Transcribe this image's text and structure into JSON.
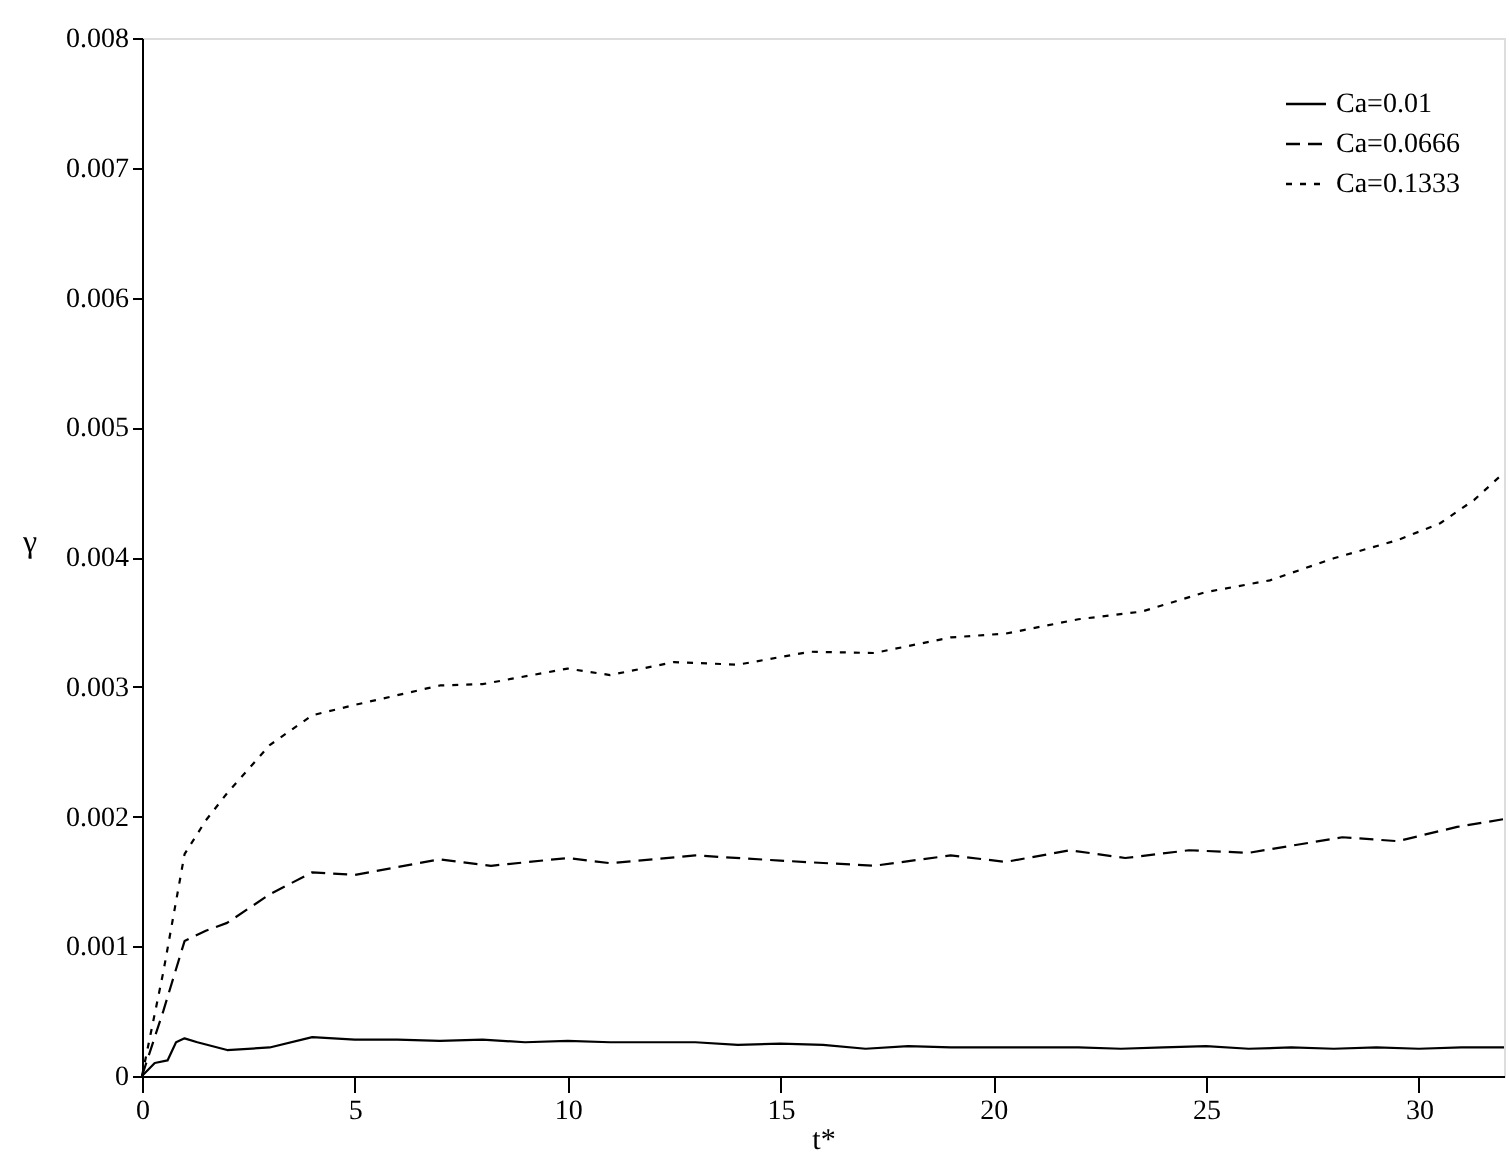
{
  "chart_data": {
    "type": "line",
    "xlabel": "t*",
    "ylabel": "γ",
    "xlim": [
      0,
      32
    ],
    "xticks": [
      0,
      5,
      10,
      15,
      20,
      25,
      30
    ],
    "ylim": [
      0,
      0.008
    ],
    "yticks": [
      0,
      0.001,
      0.002,
      0.003,
      0.004,
      0.005,
      0.006,
      0.007,
      0.008
    ],
    "grid": false,
    "legend": "top right",
    "marker": "none",
    "series": [
      {
        "name": "Ca=0.01",
        "color": "#000000",
        "line_style": "solid",
        "x": [
          0,
          0.3,
          0.6,
          0.8,
          1,
          1.3,
          2,
          3,
          4,
          5,
          6,
          7,
          8,
          9,
          10,
          11,
          12,
          13,
          14,
          15,
          16,
          17,
          18,
          19,
          20,
          21,
          22,
          23,
          24,
          25,
          26,
          27,
          28,
          29,
          30,
          31,
          32
        ],
        "values": [
          0,
          0.0001,
          0.00012,
          0.00026,
          0.00029,
          0.00026,
          0.0002,
          0.00022,
          0.0003,
          0.00028,
          0.00028,
          0.00027,
          0.00028,
          0.00026,
          0.00027,
          0.00026,
          0.00026,
          0.00026,
          0.00024,
          0.00025,
          0.00024,
          0.00021,
          0.00023,
          0.00022,
          0.00022,
          0.00022,
          0.00022,
          0.00021,
          0.00022,
          0.00023,
          0.00021,
          0.00022,
          0.00021,
          0.00022,
          0.00021,
          0.00022,
          0.00022
        ]
      },
      {
        "name": "Ca=0.0666",
        "color": "#000000",
        "line_style": "dashed",
        "x": [
          0,
          0.5,
          1,
          1.5,
          2,
          3,
          4,
          5,
          7,
          8.2,
          10,
          11,
          13,
          15,
          17.2,
          19,
          20.3,
          21.8,
          23.1,
          24.6,
          26,
          28.2,
          29.5,
          30.9,
          32
        ],
        "values": [
          0,
          0.0005,
          0.00104,
          0.00112,
          0.00118,
          0.0014,
          0.00157,
          0.00155,
          0.00167,
          0.00162,
          0.00168,
          0.00164,
          0.0017,
          0.00166,
          0.00162,
          0.0017,
          0.00165,
          0.00174,
          0.00168,
          0.00174,
          0.00172,
          0.00184,
          0.00181,
          0.00192,
          0.00198
        ]
      },
      {
        "name": "Ca=0.1333",
        "color": "#000000",
        "line_style": "dotted",
        "x": [
          0,
          0.5,
          1,
          1.5,
          2,
          3,
          4,
          5,
          7,
          8,
          10,
          11,
          12.5,
          14,
          15.7,
          17.2,
          19,
          20.3,
          22,
          23.5,
          25,
          26.5,
          28,
          29.5,
          30.5,
          31.3,
          32
        ],
        "values": [
          0,
          0.0008,
          0.00171,
          0.00197,
          0.00218,
          0.00255,
          0.00278,
          0.00286,
          0.00301,
          0.00302,
          0.00314,
          0.00309,
          0.00319,
          0.00317,
          0.00327,
          0.00326,
          0.00338,
          0.00341,
          0.00352,
          0.00358,
          0.00373,
          0.00382,
          0.00399,
          0.00413,
          0.00426,
          0.00444,
          0.00465
        ]
      }
    ]
  }
}
